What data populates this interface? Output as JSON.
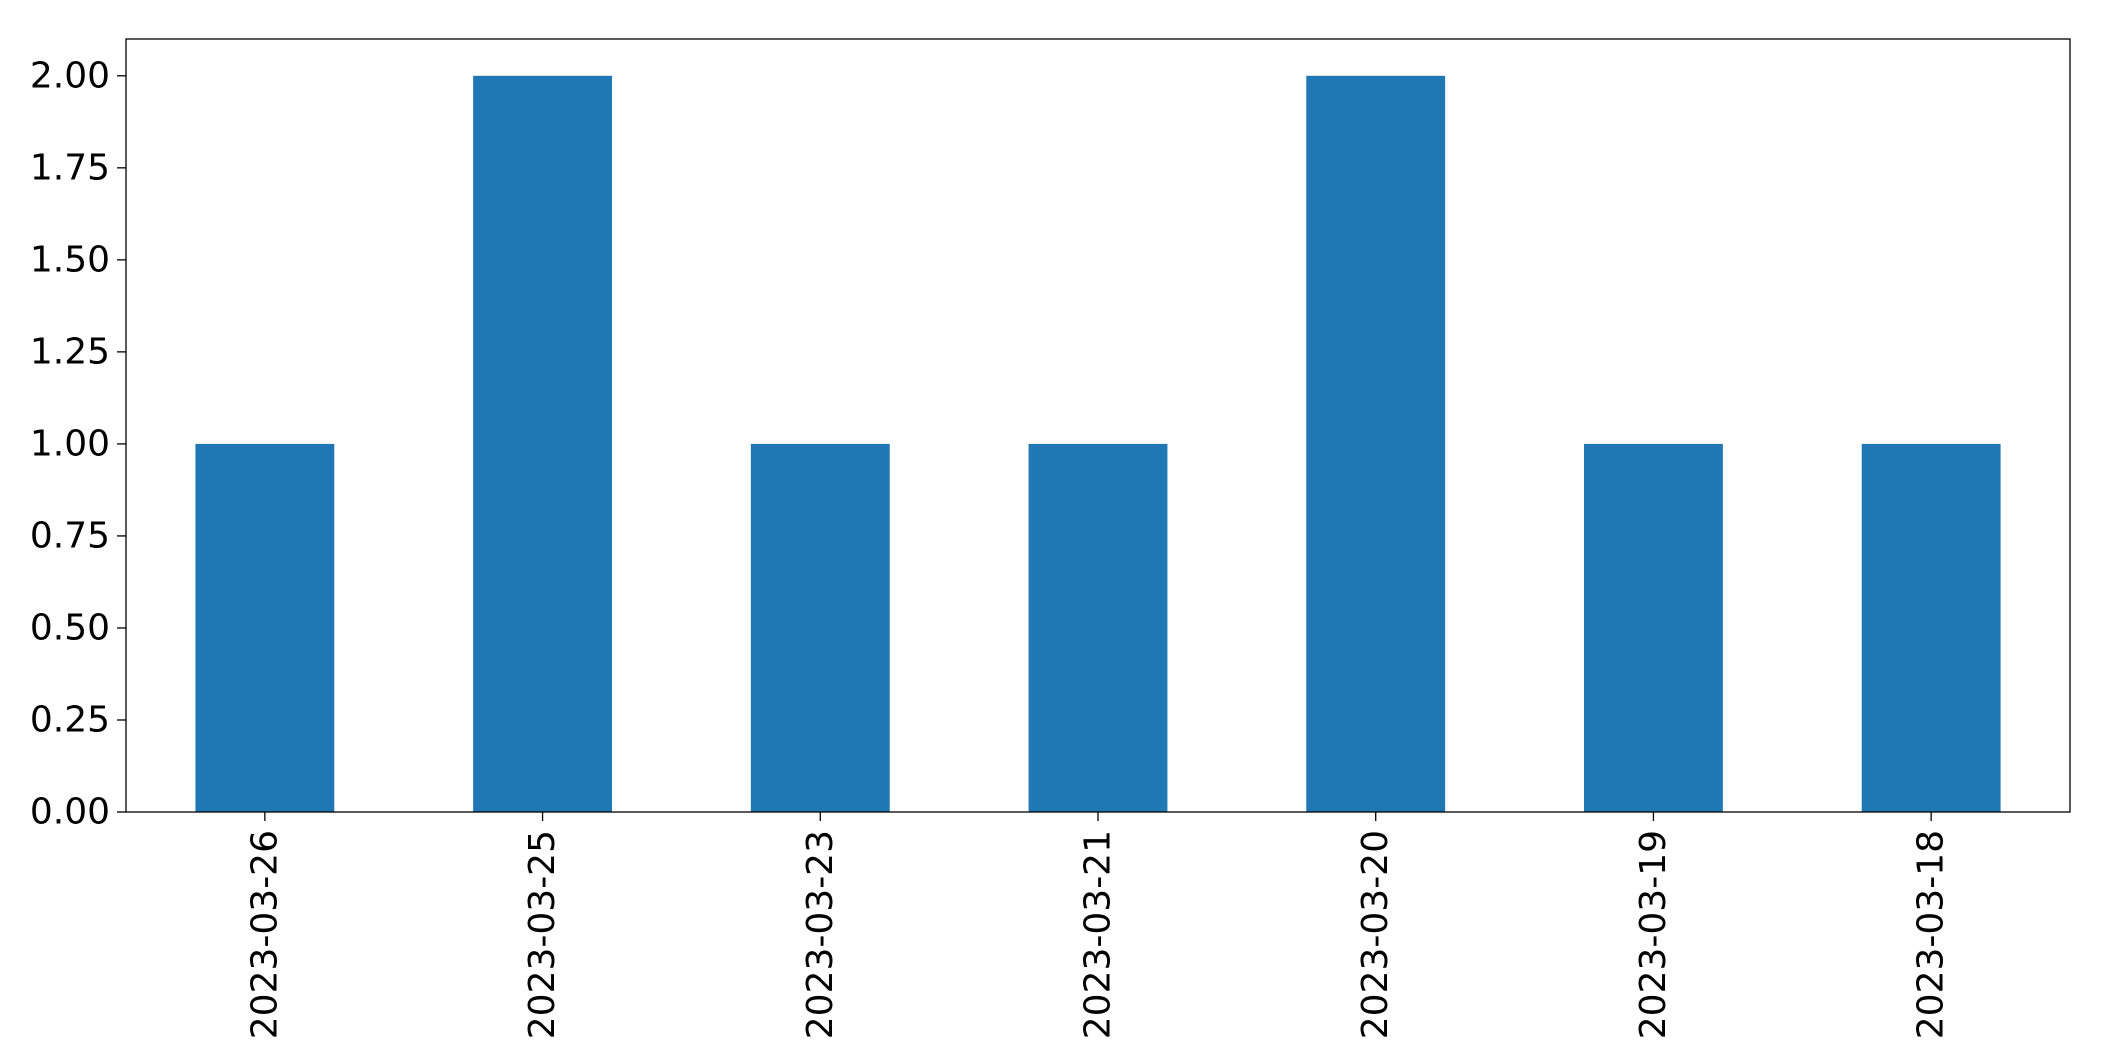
{
  "chart_data": {
    "type": "bar",
    "categories": [
      "2023-03-26",
      "2023-03-25",
      "2023-03-23",
      "2023-03-21",
      "2023-03-20",
      "2023-03-19",
      "2023-03-18"
    ],
    "values": [
      1,
      2,
      1,
      1,
      2,
      1,
      1
    ],
    "title": "",
    "xlabel": "",
    "ylabel": "",
    "ylim": [
      0,
      2.1
    ],
    "yticks": [
      0,
      0.25,
      0.5,
      0.75,
      1.0,
      1.25,
      1.5,
      1.75,
      2.0
    ],
    "ytick_labels": [
      "0.00",
      "0.25",
      "0.50",
      "0.75",
      "1.00",
      "1.25",
      "1.50",
      "1.75",
      "2.00"
    ],
    "grid": false,
    "legend": "none",
    "bar_color": "#1f77b4",
    "axes_color": "#000000"
  }
}
